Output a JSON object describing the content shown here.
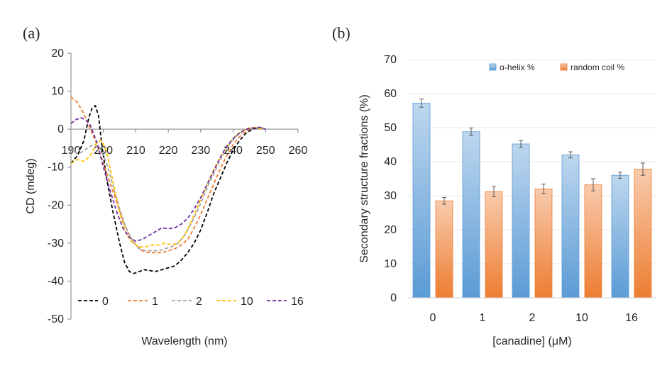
{
  "panels": {
    "a_label": "(a)",
    "b_label": "(b)"
  },
  "chart_data": [
    {
      "type": "line",
      "title": "",
      "xlabel": "Wavelength (nm)",
      "ylabel": "CD (mdeg)",
      "xlim": [
        190,
        260
      ],
      "ylim": [
        -50,
        20
      ],
      "xticks": [
        190,
        200,
        210,
        220,
        230,
        240,
        250,
        260
      ],
      "xtick_labels": [
        "190",
        "200",
        "210",
        "220",
        "230",
        "240",
        "250",
        "260"
      ],
      "yticks": [
        20,
        10,
        0,
        -10,
        -20,
        -30,
        -40,
        -50
      ],
      "ytick_labels": [
        "20",
        "10",
        "0",
        "-10",
        "-20",
        "-30",
        "-40",
        "-50"
      ],
      "legend_position": "bottom",
      "series": [
        {
          "name": "0",
          "color": "#000000",
          "x": [
            190,
            192,
            194,
            195.5,
            196.5,
            197.5,
            198.5,
            199.5,
            201,
            203,
            205,
            206.5,
            208,
            209.5,
            211,
            212.5,
            214,
            216,
            218,
            220,
            222,
            224,
            226,
            228,
            230,
            232,
            234,
            236,
            238,
            240,
            242,
            244,
            246,
            248,
            250
          ],
          "y": [
            -9,
            -7,
            -3,
            3,
            5.5,
            6.2,
            3.5,
            -4,
            -13,
            -22,
            -30,
            -35,
            -37.5,
            -38,
            -37.5,
            -37,
            -37.2,
            -37.5,
            -37,
            -36.5,
            -36,
            -34.5,
            -32.5,
            -30,
            -26.5,
            -22,
            -17,
            -13,
            -9,
            -5.5,
            -3,
            -1,
            0,
            0.5,
            0
          ]
        },
        {
          "name": "1",
          "color": "#ED7D31",
          "x": [
            190,
            192,
            194,
            196,
            198,
            200,
            202,
            204,
            206,
            208,
            210,
            212,
            214,
            216,
            218,
            220,
            222,
            224,
            226,
            228,
            230,
            232,
            234,
            236,
            238,
            240,
            242,
            244,
            246,
            248,
            250
          ],
          "y": [
            8.5,
            7,
            4,
            0,
            -4,
            -9,
            -14,
            -19,
            -24,
            -28,
            -30.5,
            -32,
            -32.5,
            -32.5,
            -32.5,
            -32,
            -31.5,
            -30.5,
            -29,
            -26,
            -22.5,
            -18.5,
            -14.5,
            -10.5,
            -7,
            -4,
            -2,
            -0.5,
            0.3,
            0.5,
            0
          ]
        },
        {
          "name": "2",
          "color": "#A5A5A5",
          "x": [
            190,
            192,
            193.5,
            195,
            197,
            199,
            201,
            203,
            205,
            207,
            209,
            211,
            213,
            215,
            217,
            219,
            221,
            223,
            225,
            227,
            229,
            231,
            233,
            235,
            237,
            239,
            241,
            243,
            245,
            247,
            249
          ],
          "y": [
            -5,
            -6.5,
            -6,
            -5,
            -4,
            -5,
            -9,
            -15,
            -21,
            -26,
            -29.5,
            -31.5,
            -32,
            -32,
            -32,
            -31.5,
            -31,
            -30,
            -28,
            -25,
            -21.5,
            -17.5,
            -13.5,
            -10,
            -6.5,
            -3.8,
            -1.8,
            -0.5,
            0.2,
            0.4,
            0
          ]
        },
        {
          "name": "10",
          "color": "#FFC000",
          "x": [
            190,
            192,
            194,
            196,
            198,
            199.5,
            201,
            203,
            205,
            207,
            209,
            211,
            213,
            215,
            217,
            219,
            221,
            223,
            225,
            227,
            229,
            231,
            233,
            235,
            237,
            239,
            241,
            243,
            245,
            247,
            249
          ],
          "y": [
            -9,
            -8,
            -8.5,
            -7,
            -3.5,
            -3,
            -6,
            -14,
            -22,
            -27.5,
            -30,
            -31,
            -31,
            -30.5,
            -30.5,
            -30,
            -30.5,
            -30,
            -28,
            -24.5,
            -20.5,
            -16.5,
            -12.5,
            -9,
            -6,
            -3.5,
            -1.5,
            -0.3,
            0.3,
            0.5,
            0
          ]
        },
        {
          "name": "16",
          "color": "#7030A0",
          "x": [
            190,
            191.5,
            193,
            194.5,
            196,
            198,
            200,
            202,
            204,
            206,
            208,
            210,
            212,
            214,
            216,
            218,
            220,
            222,
            224,
            226,
            228,
            230,
            232,
            234,
            236,
            238,
            240,
            242,
            244,
            246,
            248,
            250
          ],
          "y": [
            1.5,
            2.5,
            3,
            2.5,
            1,
            -3.5,
            -10,
            -16,
            -21.5,
            -26,
            -28.5,
            -29.5,
            -29,
            -28,
            -27,
            -26,
            -26.2,
            -26,
            -25,
            -23.5,
            -21,
            -18,
            -14.5,
            -11,
            -7.5,
            -4.5,
            -2.5,
            -1,
            0,
            0.3,
            0.5,
            0
          ]
        }
      ]
    },
    {
      "type": "bar",
      "title": "",
      "xlabel": "[canadine] (μM)",
      "ylabel": "Secondary structure fractions (%)",
      "ylim": [
        0,
        70
      ],
      "yticks": [
        0,
        10,
        20,
        30,
        40,
        50,
        60,
        70
      ],
      "ytick_labels": [
        "0",
        "10",
        "20",
        "30",
        "40",
        "50",
        "60",
        "70"
      ],
      "categories": [
        "0",
        "1",
        "2",
        "10",
        "16"
      ],
      "legend_position": "top-right",
      "series": [
        {
          "name": "α-helix %",
          "color_top": "#BDD7EE",
          "color_bottom": "#5B9BD5",
          "color_edge": "#5B9BD5",
          "values": [
            57.2,
            48.8,
            45.2,
            42.0,
            36.0
          ],
          "errors": [
            1.2,
            1.1,
            1.0,
            0.9,
            0.9
          ]
        },
        {
          "name": "random coil %",
          "color_top": "#F8CBAD",
          "color_bottom": "#ED7D31",
          "color_edge": "#ED7D31",
          "values": [
            28.5,
            31.2,
            32.0,
            33.2,
            37.8
          ],
          "errors": [
            1.0,
            1.5,
            1.4,
            1.8,
            1.8
          ]
        }
      ]
    }
  ]
}
